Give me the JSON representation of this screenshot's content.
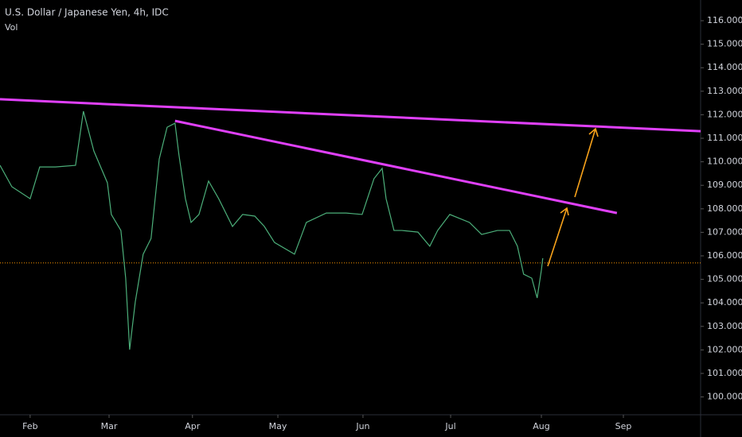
{
  "chart_data": {
    "type": "line",
    "title": "U.S. Dollar / Japanese Yen, 4h, IDC",
    "subtitle": "Vol",
    "x": [
      21.3,
      25.5,
      32,
      35.4,
      41,
      48.1,
      50.9,
      54.6,
      59.4,
      60.8,
      64.2,
      65.9,
      67.3,
      69.3,
      72.1,
      74.9,
      77.8,
      80.6,
      83.4,
      84.8,
      87.1,
      89.1,
      91.9,
      95.3,
      98.9,
      103.8,
      107.4,
      111.7,
      115.1,
      118.7,
      125.8,
      130,
      137.1,
      144.1,
      149.8,
      154,
      156.9,
      158.3,
      161.1,
      163.9,
      169.6,
      173.8,
      176.6,
      180.9,
      187.9,
      192.2,
      197.8,
      202.1,
      204.9,
      207.1,
      210,
      211.9,
      213.4,
      213.9
    ],
    "series": [
      {
        "color": "#4caf7a",
        "values": [
          109.85,
          108.94,
          108.43,
          109.78,
          109.78,
          109.85,
          112.15,
          110.46,
          109.11,
          107.76,
          107.08,
          105.05,
          102.01,
          104.04,
          106.07,
          106.74,
          110.12,
          111.47,
          111.64,
          110.29,
          108.43,
          107.42,
          107.76,
          109.18,
          108.43,
          107.25,
          107.76,
          107.69,
          107.25,
          106.57,
          106.07,
          107.42,
          107.82,
          107.82,
          107.76,
          109.28,
          109.72,
          108.43,
          107.08,
          107.08,
          107.01,
          106.41,
          107.08,
          107.76,
          107.42,
          106.91,
          107.08,
          107.08,
          106.41,
          105.22,
          105.05,
          104.21,
          105.39,
          105.9
        ]
      }
    ],
    "trendlines": [
      {
        "color": "#e040fb",
        "x": [
          21.3,
          269.9
        ],
        "values": [
          112.66,
          111.3
        ]
      },
      {
        "color": "#e040fb",
        "x": [
          83.4,
          240.2
        ],
        "values": [
          111.74,
          107.82
        ]
      }
    ],
    "current_price": 105.7,
    "current_price_color": "#ff9800",
    "xlim": [
      21.3,
      269.9
    ],
    "ylim": [
      99.31,
      116.88
    ],
    "xticks": [
      {
        "value": 32,
        "label": "Feb"
      },
      {
        "value": 60,
        "label": "Mar"
      },
      {
        "value": 89.6,
        "label": "Apr"
      },
      {
        "value": 119.9,
        "label": "May"
      },
      {
        "value": 150.1,
        "label": "Jun"
      },
      {
        "value": 181.2,
        "label": "Jul"
      },
      {
        "value": 213.4,
        "label": "Aug"
      },
      {
        "value": 242.5,
        "label": "Sep"
      }
    ],
    "yticks": [
      {
        "value": 100,
        "label": "100.000"
      },
      {
        "value": 101,
        "label": "101.000"
      },
      {
        "value": 102,
        "label": "102.000"
      },
      {
        "value": 103,
        "label": "103.000"
      },
      {
        "value": 104,
        "label": "104.000"
      },
      {
        "value": 105,
        "label": "105.000"
      },
      {
        "value": 106,
        "label": "106.000"
      },
      {
        "value": 107,
        "label": "107.000"
      },
      {
        "value": 108,
        "label": "108.000"
      },
      {
        "value": 109,
        "label": "109.000"
      },
      {
        "value": 110,
        "label": "110.000"
      },
      {
        "value": 111,
        "label": "111.000"
      },
      {
        "value": 112,
        "label": "112.000"
      },
      {
        "value": 113,
        "label": "113.000"
      },
      {
        "value": 114,
        "label": "114.000"
      },
      {
        "value": 115,
        "label": "115.000"
      },
      {
        "value": 116,
        "label": "116.000"
      }
    ]
  }
}
